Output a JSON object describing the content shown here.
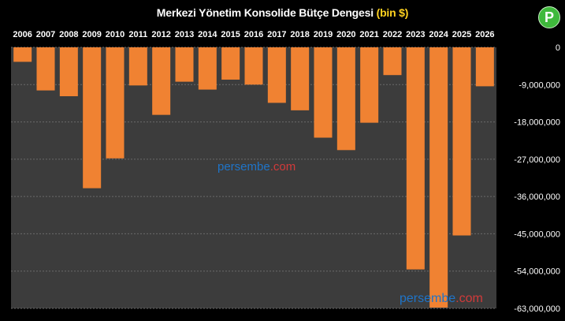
{
  "title": {
    "main": "Merkezi Yönetim Konsolide Bütçe Dengesi",
    "unit": "(bin $)"
  },
  "logo": {
    "letter": "P"
  },
  "watermarks": [
    {
      "name": "persembe",
      "tld": ".com"
    },
    {
      "name": "persembe",
      "tld": ".com"
    }
  ],
  "colors": {
    "bar": "#f08232",
    "plot_bg": "#3c3c3c",
    "page_bg": "#000000",
    "grid": "#6a6a6a",
    "title_unit": "#ffd21f",
    "logo": "#3fb93c",
    "watermark": "#1f74c8",
    "watermark_tld": "#d23a3a"
  },
  "chart_data": {
    "type": "bar",
    "categories": [
      "2006",
      "2007",
      "2008",
      "2009",
      "2010",
      "2011",
      "2012",
      "2013",
      "2014",
      "2015",
      "2016",
      "2017",
      "2018",
      "2019",
      "2020",
      "2021",
      "2022",
      "2023",
      "2024",
      "2025",
      "2026"
    ],
    "values": [
      -3500000,
      -10400000,
      -11800000,
      -34000000,
      -26800000,
      -9200000,
      -16300000,
      -8300000,
      -10200000,
      -7800000,
      -9000000,
      -13400000,
      -15200000,
      -21800000,
      -24800000,
      -18200000,
      -6700000,
      -53600000,
      -62800000,
      -45400000,
      -9400000
    ],
    "ylim": [
      -63000000,
      0
    ],
    "yticks": [
      0,
      -9000000,
      -18000000,
      -27000000,
      -36000000,
      -45000000,
      -54000000,
      -63000000
    ],
    "ytick_labels": [
      "0",
      "-9,000,000",
      "-18,000,000",
      "-27,000,000",
      "-36,000,000",
      "-45,000,000",
      "-54,000,000",
      "-63,000,000"
    ],
    "grid": true,
    "x_axis_position": "top",
    "y_axis_position": "right"
  }
}
